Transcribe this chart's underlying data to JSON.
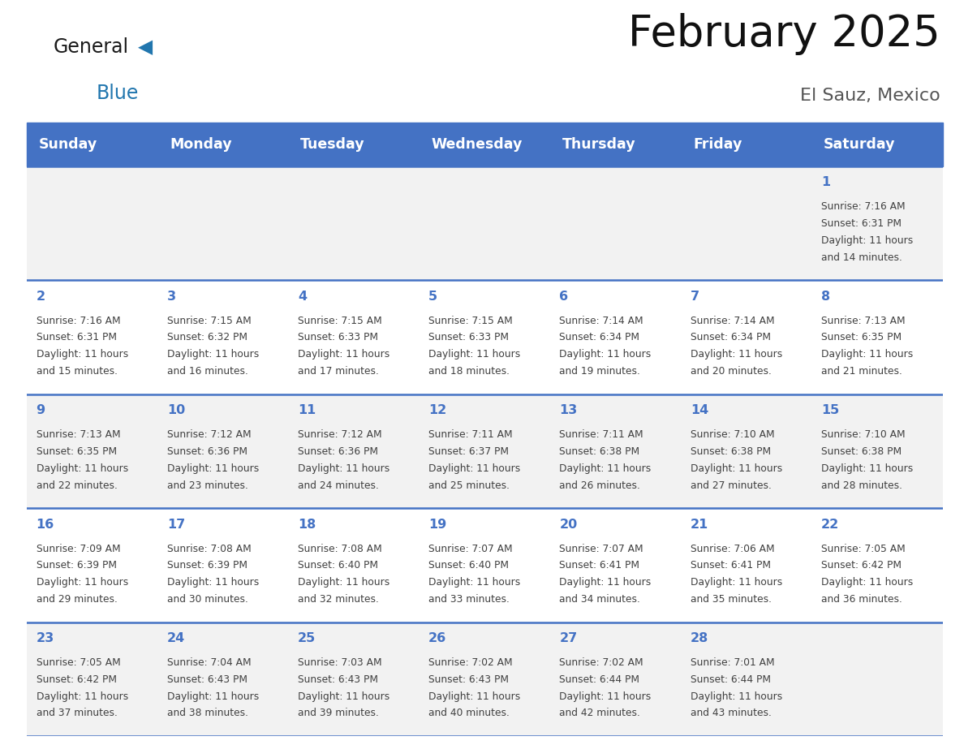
{
  "title": "February 2025",
  "subtitle": "El Sauz, Mexico",
  "header_color": "#4472C4",
  "header_text_color": "#FFFFFF",
  "days_of_week": [
    "Sunday",
    "Monday",
    "Tuesday",
    "Wednesday",
    "Thursday",
    "Friday",
    "Saturday"
  ],
  "background_color": "#FFFFFF",
  "cell_bg_odd": "#F2F2F2",
  "cell_bg_even": "#FFFFFF",
  "day_number_color": "#4472C4",
  "text_color": "#404040",
  "border_color": "#4472C4",
  "logo_general_color": "#1a1a1a",
  "logo_blue_color": "#2176AE",
  "logo_triangle_color": "#2176AE",
  "calendar": [
    [
      null,
      null,
      null,
      null,
      null,
      null,
      1
    ],
    [
      2,
      3,
      4,
      5,
      6,
      7,
      8
    ],
    [
      9,
      10,
      11,
      12,
      13,
      14,
      15
    ],
    [
      16,
      17,
      18,
      19,
      20,
      21,
      22
    ],
    [
      23,
      24,
      25,
      26,
      27,
      28,
      null
    ]
  ],
  "sunrise_data": {
    "1": "7:16 AM",
    "2": "7:16 AM",
    "3": "7:15 AM",
    "4": "7:15 AM",
    "5": "7:15 AM",
    "6": "7:14 AM",
    "7": "7:14 AM",
    "8": "7:13 AM",
    "9": "7:13 AM",
    "10": "7:12 AM",
    "11": "7:12 AM",
    "12": "7:11 AM",
    "13": "7:11 AM",
    "14": "7:10 AM",
    "15": "7:10 AM",
    "16": "7:09 AM",
    "17": "7:08 AM",
    "18": "7:08 AM",
    "19": "7:07 AM",
    "20": "7:07 AM",
    "21": "7:06 AM",
    "22": "7:05 AM",
    "23": "7:05 AM",
    "24": "7:04 AM",
    "25": "7:03 AM",
    "26": "7:02 AM",
    "27": "7:02 AM",
    "28": "7:01 AM"
  },
  "sunset_data": {
    "1": "6:31 PM",
    "2": "6:31 PM",
    "3": "6:32 PM",
    "4": "6:33 PM",
    "5": "6:33 PM",
    "6": "6:34 PM",
    "7": "6:34 PM",
    "8": "6:35 PM",
    "9": "6:35 PM",
    "10": "6:36 PM",
    "11": "6:36 PM",
    "12": "6:37 PM",
    "13": "6:38 PM",
    "14": "6:38 PM",
    "15": "6:38 PM",
    "16": "6:39 PM",
    "17": "6:39 PM",
    "18": "6:40 PM",
    "19": "6:40 PM",
    "20": "6:41 PM",
    "21": "6:41 PM",
    "22": "6:42 PM",
    "23": "6:42 PM",
    "24": "6:43 PM",
    "25": "6:43 PM",
    "26": "6:43 PM",
    "27": "6:44 PM",
    "28": "6:44 PM"
  },
  "daylight_data": {
    "1": "11 hours\nand 14 minutes.",
    "2": "11 hours\nand 15 minutes.",
    "3": "11 hours\nand 16 minutes.",
    "4": "11 hours\nand 17 minutes.",
    "5": "11 hours\nand 18 minutes.",
    "6": "11 hours\nand 19 minutes.",
    "7": "11 hours\nand 20 minutes.",
    "8": "11 hours\nand 21 minutes.",
    "9": "11 hours\nand 22 minutes.",
    "10": "11 hours\nand 23 minutes.",
    "11": "11 hours\nand 24 minutes.",
    "12": "11 hours\nand 25 minutes.",
    "13": "11 hours\nand 26 minutes.",
    "14": "11 hours\nand 27 minutes.",
    "15": "11 hours\nand 28 minutes.",
    "16": "11 hours\nand 29 minutes.",
    "17": "11 hours\nand 30 minutes.",
    "18": "11 hours\nand 32 minutes.",
    "19": "11 hours\nand 33 minutes.",
    "20": "11 hours\nand 34 minutes.",
    "21": "11 hours\nand 35 minutes.",
    "22": "11 hours\nand 36 minutes.",
    "23": "11 hours\nand 37 minutes.",
    "24": "11 hours\nand 38 minutes.",
    "25": "11 hours\nand 39 minutes.",
    "26": "11 hours\nand 40 minutes.",
    "27": "11 hours\nand 42 minutes.",
    "28": "11 hours\nand 43 minutes."
  }
}
